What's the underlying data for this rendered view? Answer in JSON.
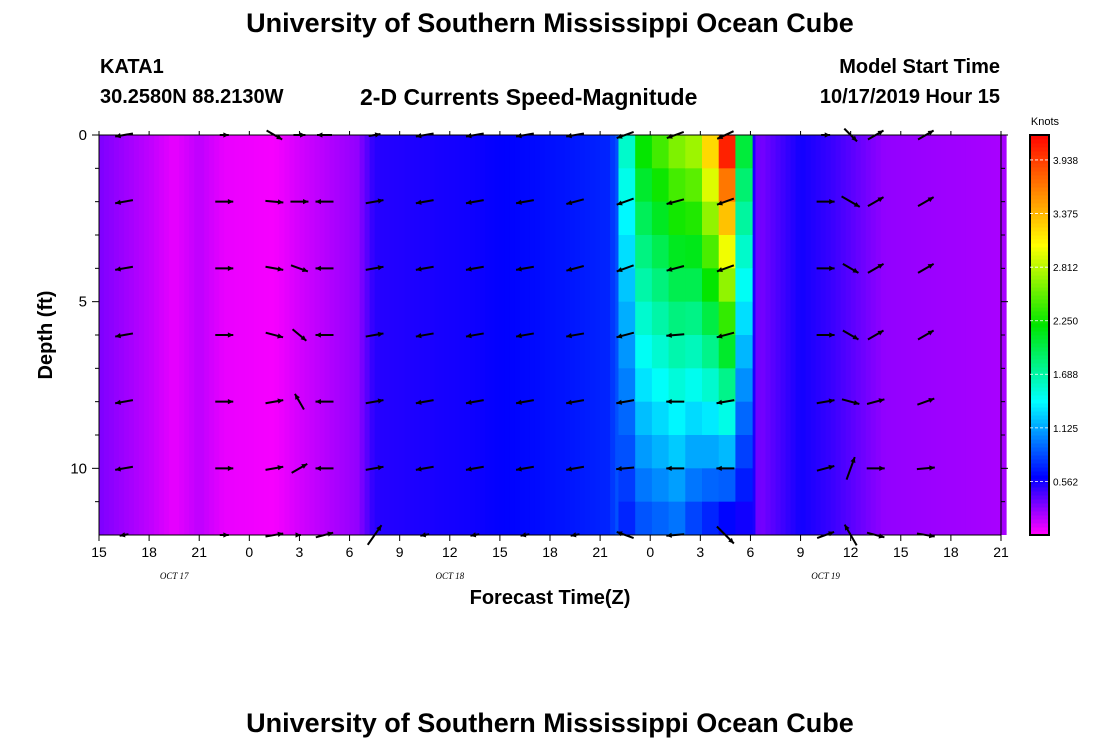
{
  "header": {
    "title": "University of Southern Mississippi Ocean Cube",
    "station_id": "KATA1",
    "coords": "30.2580N 88.2130W",
    "model_start_label": "Model Start Time",
    "model_start_value": "10/17/2019 Hour 15"
  },
  "footer": {
    "title": "University of Southern Mississippi Ocean Cube"
  },
  "colors": {
    "low": "#ff00ff",
    "mid": "#0000ff",
    "high": "#ff0000",
    "arrow": "#000000"
  },
  "chart_data": {
    "type": "heatmap",
    "title": "2-D Currents Speed-Magnitude",
    "xlabel": "Forecast Time(Z)",
    "ylabel": "Depth (ft)",
    "xlim": [
      0,
      54
    ],
    "ylim": [
      12,
      0
    ],
    "x_ticks": [
      {
        "x": 0,
        "label": "15"
      },
      {
        "x": 3,
        "label": "18"
      },
      {
        "x": 6,
        "label": "21"
      },
      {
        "x": 9,
        "label": "0"
      },
      {
        "x": 12,
        "label": "3"
      },
      {
        "x": 15,
        "label": "6"
      },
      {
        "x": 18,
        "label": "9"
      },
      {
        "x": 21,
        "label": "12"
      },
      {
        "x": 24,
        "label": "15"
      },
      {
        "x": 27,
        "label": "18"
      },
      {
        "x": 30,
        "label": "21"
      },
      {
        "x": 33,
        "label": "0"
      },
      {
        "x": 36,
        "label": "3"
      },
      {
        "x": 39,
        "label": "6"
      },
      {
        "x": 42,
        "label": "9"
      },
      {
        "x": 45,
        "label": "12"
      },
      {
        "x": 48,
        "label": "15"
      },
      {
        "x": 51,
        "label": "18"
      },
      {
        "x": 54,
        "label": "21"
      }
    ],
    "day_labels": [
      {
        "x": 4.5,
        "label": "OCT 17"
      },
      {
        "x": 21,
        "label": "OCT 18"
      },
      {
        "x": 43.5,
        "label": "OCT 19"
      }
    ],
    "y_ticks": [
      0,
      5,
      10
    ],
    "y_minor_ticks": [
      1,
      2,
      3,
      4,
      6,
      7,
      8,
      9,
      11
    ],
    "colorbar": {
      "label": "Knots",
      "min": 0,
      "max": 4.2,
      "ticks": [
        "0.562",
        "1.125",
        "1.688",
        "2.250",
        "2.812",
        "3.375",
        "3.938"
      ]
    },
    "speed_profile": [
      {
        "x": 0,
        "v": 0.3
      },
      {
        "x": 3,
        "v": 0.15
      },
      {
        "x": 4.5,
        "v": 0.05
      },
      {
        "x": 6,
        "v": 0.15
      },
      {
        "x": 7.5,
        "v": 0.05
      },
      {
        "x": 10.5,
        "v": 0.02
      },
      {
        "x": 12,
        "v": 0.1
      },
      {
        "x": 15.5,
        "v": 0.25
      },
      {
        "x": 16.5,
        "v": 0.5
      },
      {
        "x": 22,
        "v": 0.55
      },
      {
        "x": 28,
        "v": 0.65
      },
      {
        "x": 30.5,
        "v": 0.7
      },
      {
        "x": 31.5,
        "v": 0.95
      },
      {
        "x": 38.5,
        "v": 0.95
      },
      {
        "x": 39.5,
        "v": 0.3
      },
      {
        "x": 42,
        "v": 0.55
      },
      {
        "x": 44,
        "v": 0.45
      },
      {
        "x": 47,
        "v": 0.25
      },
      {
        "x": 54,
        "v": 0.2
      }
    ],
    "jet": [
      {
        "x": 31.6,
        "surface": 1.55,
        "bottom": 0.7
      },
      {
        "x": 32.6,
        "surface": 2.2,
        "bottom": 0.85
      },
      {
        "x": 33.6,
        "surface": 2.4,
        "bottom": 0.9
      },
      {
        "x": 34.6,
        "surface": 2.6,
        "bottom": 0.95
      },
      {
        "x": 35.6,
        "surface": 2.7,
        "bottom": 0.8
      },
      {
        "x": 36.6,
        "surface": 3.2,
        "bottom": 0.7
      },
      {
        "x": 37.6,
        "surface": 4.05,
        "bottom": 0.6
      },
      {
        "x": 38.6,
        "surface": 2.0,
        "bottom": 0.55
      }
    ],
    "vector_depths": [
      0,
      2,
      4,
      6,
      8,
      10,
      12
    ],
    "vector_columns": [
      {
        "x": 1.5,
        "dir": [
          [
            260,
            0.6
          ],
          [
            260,
            0.6
          ],
          [
            260,
            0.6
          ],
          [
            260,
            0.6
          ],
          [
            260,
            0.6
          ],
          [
            260,
            0.6
          ],
          [
            260,
            0.3
          ]
        ]
      },
      {
        "x": 7.5,
        "dir": [
          [
            90,
            0.3
          ],
          [
            90,
            0.6
          ],
          [
            90,
            0.6
          ],
          [
            90,
            0.6
          ],
          [
            90,
            0.6
          ],
          [
            90,
            0.6
          ],
          [
            90,
            0.3
          ]
        ]
      },
      {
        "x": 10.5,
        "dir": [
          [
            120,
            0.6
          ],
          [
            95,
            0.6
          ],
          [
            100,
            0.6
          ],
          [
            105,
            0.6
          ],
          [
            80,
            0.6
          ],
          [
            80,
            0.6
          ],
          [
            80,
            0.6
          ]
        ]
      },
      {
        "x": 12.0,
        "dir": [
          [
            90,
            0.4
          ],
          [
            90,
            0.6
          ],
          [
            110,
            0.6
          ],
          [
            130,
            0.6
          ],
          [
            330,
            0.6
          ],
          [
            60,
            0.6
          ],
          [
            90,
            0.1
          ]
        ]
      },
      {
        "x": 13.5,
        "dir": [
          [
            270,
            0.5
          ],
          [
            270,
            0.6
          ],
          [
            270,
            0.6
          ],
          [
            270,
            0.6
          ],
          [
            270,
            0.6
          ],
          [
            270,
            0.6
          ],
          [
            75,
            0.6
          ]
        ]
      },
      {
        "x": 16.5,
        "dir": [
          [
            80,
            0.4
          ],
          [
            80,
            0.6
          ],
          [
            80,
            0.6
          ],
          [
            80,
            0.6
          ],
          [
            80,
            0.6
          ],
          [
            80,
            0.6
          ],
          [
            35,
            0.8
          ]
        ]
      },
      {
        "x": 19.5,
        "dir": [
          [
            260,
            0.6
          ],
          [
            260,
            0.6
          ],
          [
            260,
            0.6
          ],
          [
            260,
            0.6
          ],
          [
            260,
            0.6
          ],
          [
            260,
            0.6
          ],
          [
            260,
            0.3
          ]
        ]
      },
      {
        "x": 22.5,
        "dir": [
          [
            260,
            0.6
          ],
          [
            260,
            0.6
          ],
          [
            260,
            0.6
          ],
          [
            260,
            0.6
          ],
          [
            260,
            0.6
          ],
          [
            260,
            0.6
          ],
          [
            260,
            0.3
          ]
        ]
      },
      {
        "x": 25.5,
        "dir": [
          [
            260,
            0.6
          ],
          [
            260,
            0.6
          ],
          [
            260,
            0.6
          ],
          [
            260,
            0.6
          ],
          [
            260,
            0.6
          ],
          [
            260,
            0.6
          ],
          [
            260,
            0.3
          ]
        ]
      },
      {
        "x": 28.5,
        "dir": [
          [
            260,
            0.6
          ],
          [
            255,
            0.6
          ],
          [
            255,
            0.6
          ],
          [
            260,
            0.6
          ],
          [
            260,
            0.6
          ],
          [
            260,
            0.6
          ],
          [
            260,
            0.3
          ]
        ]
      },
      {
        "x": 31.5,
        "dir": [
          [
            250,
            0.6
          ],
          [
            250,
            0.6
          ],
          [
            250,
            0.6
          ],
          [
            255,
            0.6
          ],
          [
            260,
            0.6
          ],
          [
            265,
            0.6
          ],
          [
            290,
            0.6
          ]
        ]
      },
      {
        "x": 34.5,
        "dir": [
          [
            250,
            0.6
          ],
          [
            255,
            0.6
          ],
          [
            255,
            0.6
          ],
          [
            265,
            0.6
          ],
          [
            270,
            0.6
          ],
          [
            270,
            0.6
          ],
          [
            265,
            0.6
          ]
        ]
      },
      {
        "x": 37.5,
        "dir": [
          [
            245,
            0.6
          ],
          [
            250,
            0.6
          ],
          [
            250,
            0.6
          ],
          [
            255,
            0.6
          ],
          [
            260,
            0.6
          ],
          [
            270,
            0.6
          ],
          [
            135,
            0.8
          ]
        ]
      },
      {
        "x": 43.5,
        "dir": [
          [
            90,
            0.3
          ],
          [
            90,
            0.6
          ],
          [
            90,
            0.6
          ],
          [
            90,
            0.6
          ],
          [
            80,
            0.6
          ],
          [
            75,
            0.6
          ],
          [
            70,
            0.6
          ]
        ]
      },
      {
        "x": 45.0,
        "dir": [
          [
            135,
            0.6
          ],
          [
            120,
            0.7
          ],
          [
            120,
            0.6
          ],
          [
            120,
            0.6
          ],
          [
            105,
            0.6
          ],
          [
            20,
            0.8
          ],
          [
            330,
            0.8
          ]
        ]
      },
      {
        "x": 46.5,
        "dir": [
          [
            60,
            0.6
          ],
          [
            60,
            0.6
          ],
          [
            60,
            0.6
          ],
          [
            60,
            0.6
          ],
          [
            75,
            0.6
          ],
          [
            90,
            0.6
          ],
          [
            105,
            0.6
          ]
        ]
      },
      {
        "x": 49.5,
        "dir": [
          [
            60,
            0.6
          ],
          [
            60,
            0.6
          ],
          [
            60,
            0.6
          ],
          [
            60,
            0.6
          ],
          [
            70,
            0.6
          ],
          [
            85,
            0.6
          ],
          [
            100,
            0.6
          ]
        ]
      }
    ]
  }
}
